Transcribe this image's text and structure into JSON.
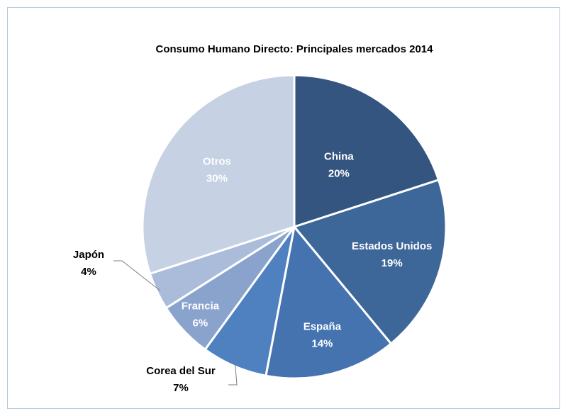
{
  "chart_data": {
    "type": "pie",
    "title": "Consumo Humano Directo: Principales mercados 2014",
    "categories": [
      "China",
      "Estados Unidos",
      "España",
      "Corea del Sur",
      "Francia",
      "Japón",
      "Otros"
    ],
    "values": [
      20,
      19,
      14,
      7,
      6,
      4,
      30
    ],
    "value_labels": [
      "20%",
      "19%",
      "14%",
      "7%",
      "6%",
      "4%",
      "30%"
    ],
    "colors": [
      "#34557f",
      "#3d6699",
      "#4473b0",
      "#4f81c1",
      "#8aa3cd",
      "#aabcda",
      "#c6d1e3"
    ]
  }
}
